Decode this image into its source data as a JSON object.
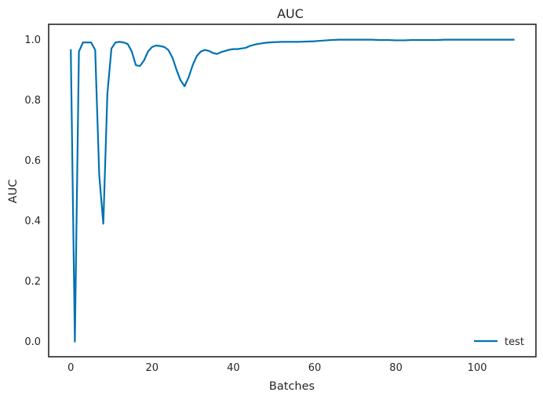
{
  "chart_data": {
    "type": "line",
    "title": "AUC",
    "xlabel": "Batches",
    "ylabel": "AUC",
    "xlim": [
      -5.45,
      114.45
    ],
    "ylim": [
      -0.05,
      1.05
    ],
    "xticks": [
      0,
      20,
      40,
      60,
      80,
      100
    ],
    "yticks": [
      0.0,
      0.2,
      0.4,
      0.6,
      0.8,
      1.0
    ],
    "xtick_labels": [
      "0",
      "20",
      "40",
      "60",
      "80",
      "100"
    ],
    "ytick_labels": [
      "0.0",
      "0.2",
      "0.4",
      "0.6",
      "0.8",
      "1.0"
    ],
    "grid": false,
    "legend_position": "lower-right",
    "series": [
      {
        "name": "test",
        "color": "#0072b2",
        "x": [
          0,
          1,
          2,
          3,
          4,
          5,
          6,
          7,
          8,
          9,
          10,
          11,
          12,
          13,
          14,
          15,
          16,
          17,
          18,
          19,
          20,
          21,
          22,
          23,
          24,
          25,
          26,
          27,
          28,
          29,
          30,
          31,
          32,
          33,
          34,
          35,
          36,
          37,
          38,
          39,
          40,
          41,
          42,
          43,
          44,
          45,
          46,
          47,
          48,
          49,
          50,
          52,
          54,
          56,
          58,
          60,
          62,
          64,
          66,
          68,
          70,
          72,
          74,
          76,
          78,
          80,
          82,
          84,
          86,
          88,
          90,
          92,
          94,
          96,
          98,
          100,
          102,
          104,
          106,
          108,
          109
        ],
        "y": [
          0.965,
          0.0,
          0.96,
          0.99,
          0.99,
          0.99,
          0.965,
          0.55,
          0.39,
          0.82,
          0.97,
          0.99,
          0.992,
          0.99,
          0.985,
          0.96,
          0.915,
          0.912,
          0.93,
          0.96,
          0.975,
          0.98,
          0.978,
          0.975,
          0.965,
          0.94,
          0.9,
          0.865,
          0.845,
          0.875,
          0.915,
          0.945,
          0.96,
          0.965,
          0.962,
          0.955,
          0.952,
          0.958,
          0.962,
          0.966,
          0.968,
          0.968,
          0.97,
          0.972,
          0.978,
          0.982,
          0.985,
          0.987,
          0.989,
          0.99,
          0.991,
          0.992,
          0.992,
          0.992,
          0.993,
          0.994,
          0.996,
          0.998,
          0.999,
          0.999,
          0.999,
          0.999,
          0.999,
          0.998,
          0.998,
          0.997,
          0.997,
          0.998,
          0.998,
          0.998,
          0.998,
          0.999,
          0.999,
          0.999,
          0.999,
          0.999,
          0.999,
          0.999,
          0.999,
          0.999,
          0.999
        ]
      }
    ]
  }
}
